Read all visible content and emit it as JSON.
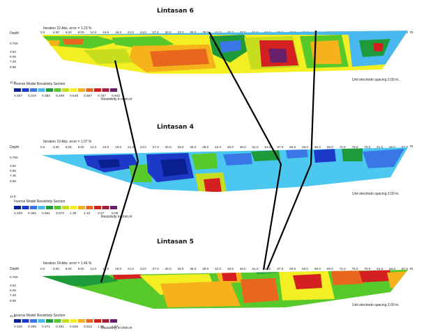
{
  "palette": {
    "colors": [
      "#0a1f8f",
      "#1c39c8",
      "#3a77e6",
      "#49b8f0",
      "#1f9a3a",
      "#58c92b",
      "#c7de1f",
      "#f3ef22",
      "#f6b21a",
      "#e9661e",
      "#d42020",
      "#a31f3a",
      "#6a1f6b"
    ],
    "connector": "#000000",
    "section_fill_lightblue": "#4cc7ef"
  },
  "sections": [
    {
      "id": "lintasan-6",
      "title": "Lintasan 6",
      "iteration": "Iteration 22 Abs. error = 1.23 %",
      "depth_label": "Depth",
      "depths": [
        "0.750",
        "3.82",
        "5.56",
        "7.46",
        "9.56",
        "11.9"
      ],
      "distances": [
        "0.0",
        "3.00",
        "6.00",
        "9.00",
        "12.0",
        "15.0",
        "18.0",
        "21.0",
        "24.0",
        "27.0",
        "30.0",
        "33.0",
        "36.0",
        "39.0",
        "42.0",
        "45.0",
        "48.0",
        "51.0",
        "54.0",
        "57.0",
        "60.0",
        "63.0",
        "66.0",
        "69.0",
        "72.0",
        "75.0",
        "78.0",
        "81.0",
        "84.0",
        "87.0"
      ],
      "unit_m": "m.",
      "legend_title": "Inverse Model Resistivity Section",
      "legend_values": [
        "0.267",
        "0.319",
        "0.382",
        "0.459",
        "0.549",
        "0.657",
        "0.787",
        "0.942"
      ],
      "legend_unit": "Resistivity in ohm.m",
      "spacing": "Unit electrode spacing 3.00 m."
    },
    {
      "id": "lintasan-4",
      "title": "Lintasan 4",
      "iteration": "Iteration 19 Abs. error = 1.07 %",
      "depth_label": "Depth",
      "depths": [
        "0.750",
        "3.82",
        "5.56",
        "7.46",
        "9.56",
        "11.9"
      ],
      "distances": [
        "0.0",
        "3.00",
        "6.00",
        "9.00",
        "12.0",
        "15.0",
        "18.0",
        "21.0",
        "24.0",
        "27.0",
        "30.0",
        "33.0",
        "36.0",
        "39.0",
        "42.0",
        "45.0",
        "48.0",
        "51.0",
        "54.0",
        "57.0",
        "60.0",
        "63.0",
        "66.0",
        "69.0",
        "72.0",
        "75.0",
        "78.0",
        "81.0",
        "84.0",
        "87.0"
      ],
      "unit_m": "m.",
      "legend_title": "Inverse Model Resistivity Section",
      "legend_values": [
        "0.233",
        "0.361",
        "0.561",
        "0.872",
        "1.35",
        "2.10",
        "3.27",
        "5.08"
      ],
      "legend_unit": "Resistivity in ohm.m",
      "spacing": "Unit electrode spacing 3.00 m."
    },
    {
      "id": "lintasan-5",
      "title": "Lintasan 5",
      "iteration": "Iteration 24 Abs. error = 1.49 %",
      "depth_label": "Depth",
      "depths": [
        "0.750",
        "3.82",
        "5.56",
        "7.46",
        "9.56",
        "11.9"
      ],
      "distances": [
        "0.0",
        "3.00",
        "6.00",
        "9.00",
        "12.0",
        "15.0",
        "18.0",
        "21.0",
        "24.0",
        "27.0",
        "30.0",
        "33.0",
        "36.0",
        "39.0",
        "42.0",
        "45.0",
        "48.0",
        "51.0",
        "54.0",
        "57.0",
        "60.0",
        "63.0",
        "66.0",
        "69.0",
        "72.0",
        "75.0",
        "78.0",
        "81.0",
        "84.0",
        "87.0"
      ],
      "unit_m": "m.",
      "legend_title": "Inverse Model Resistivity Section",
      "legend_values": [
        "0.220",
        "0.285",
        "0.371",
        "0.481",
        "0.625",
        "0.812",
        "1.05",
        "1.37"
      ],
      "legend_unit": "Resistivity in ohm.m",
      "spacing": "Unit electrode spacing 3.00 m."
    }
  ]
}
